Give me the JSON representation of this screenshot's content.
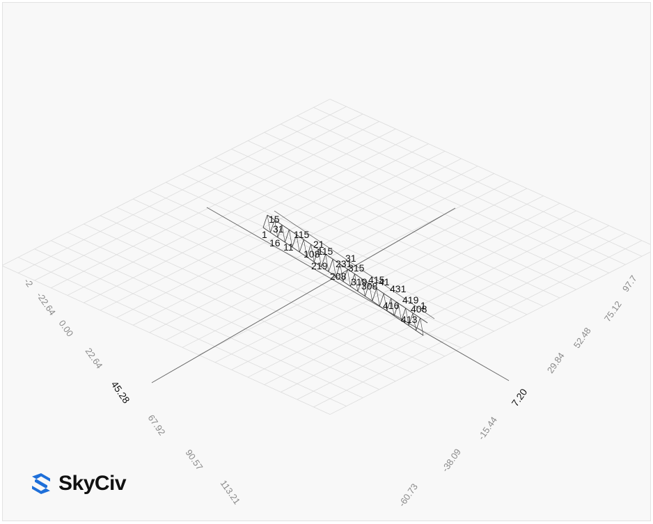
{
  "scene": {
    "grid_color": "#dcdcdc",
    "axis_color": "#666666",
    "member_color": "#3a3a3a",
    "left_axis_ticks": [
      {
        "label": "-2",
        "origin": false
      },
      {
        "label": "-22.64",
        "origin": false
      },
      {
        "label": "0.00",
        "origin": false
      },
      {
        "label": "22.64",
        "origin": false
      },
      {
        "label": "45.28",
        "origin": true
      },
      {
        "label": "67.92",
        "origin": false
      },
      {
        "label": "90.57",
        "origin": false
      },
      {
        "label": "113.21",
        "origin": false
      }
    ],
    "right_axis_ticks": [
      {
        "label": "97.7",
        "origin": false
      },
      {
        "label": "75.12",
        "origin": false
      },
      {
        "label": "52.48",
        "origin": false
      },
      {
        "label": "29.84",
        "origin": false
      },
      {
        "label": "7.20",
        "origin": true
      },
      {
        "label": "-15.44",
        "origin": false
      },
      {
        "label": "-38.09",
        "origin": false
      },
      {
        "label": "-60.73",
        "origin": false
      }
    ],
    "node_labels": [
      "15",
      "31",
      "1",
      "16",
      "115",
      "11",
      "108",
      "21",
      "115",
      "219",
      "231",
      "208",
      "31",
      "315",
      "319",
      "308",
      "415",
      "41",
      "431",
      "416",
      "419",
      "408",
      "413",
      "1"
    ]
  },
  "logo": {
    "text": "SkyCiv",
    "brand_color": "#1e6fd9",
    "icon": "skyciv-logo-icon"
  }
}
